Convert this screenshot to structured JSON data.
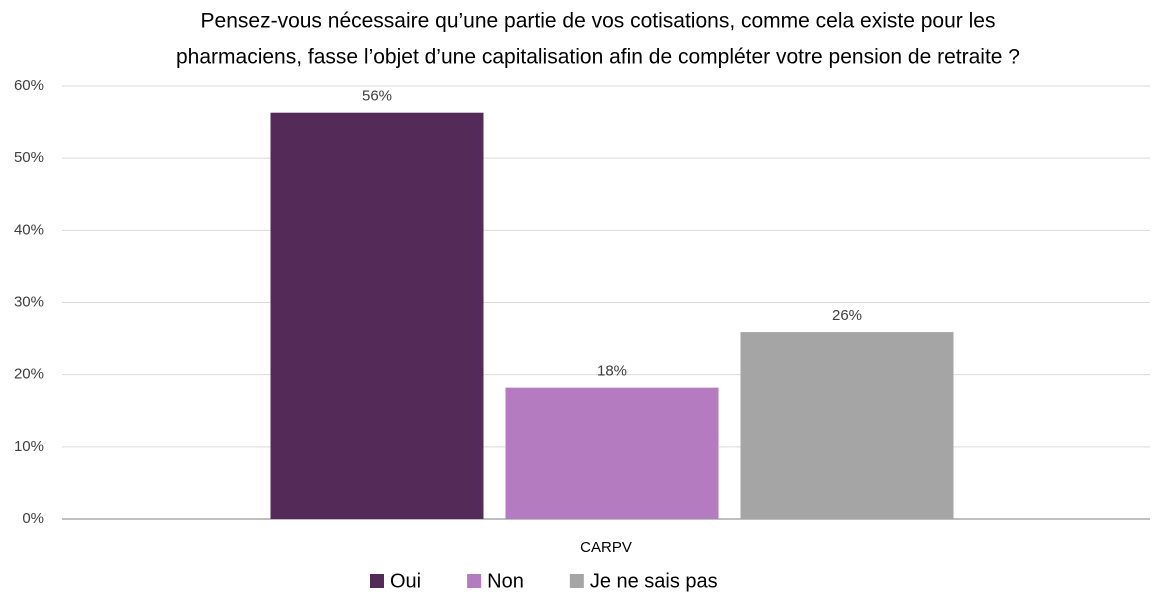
{
  "chart_data": {
    "type": "bar",
    "title": [
      "Pensez-vous nécessaire qu’une partie de vos cotisations, comme cela existe pour les",
      "pharmaciens, fasse l’objet d’une capitalisation afin de compléter votre pension de retraite ?"
    ],
    "categories": [
      "CARPV"
    ],
    "series": [
      {
        "name": "Oui",
        "color": "#542a58",
        "values": [
          56.3
        ],
        "value_labels": [
          "56%"
        ]
      },
      {
        "name": "Non",
        "color": "#b57bc1",
        "values": [
          18.2
        ],
        "value_labels": [
          "18%"
        ]
      },
      {
        "name": "Je ne sais pas",
        "color": "#a5a5a5",
        "values": [
          25.9
        ],
        "value_labels": [
          "26%"
        ]
      }
    ],
    "ylim": [
      0,
      60
    ],
    "yticks": [
      {
        "value": 0,
        "label": "0%"
      },
      {
        "value": 10,
        "label": "10%"
      },
      {
        "value": 20,
        "label": "20%"
      },
      {
        "value": 30,
        "label": "30%"
      },
      {
        "value": 40,
        "label": "40%"
      },
      {
        "value": 50,
        "label": "50%"
      },
      {
        "value": 60,
        "label": "60%"
      }
    ],
    "grid": true,
    "legend": "bottom"
  }
}
